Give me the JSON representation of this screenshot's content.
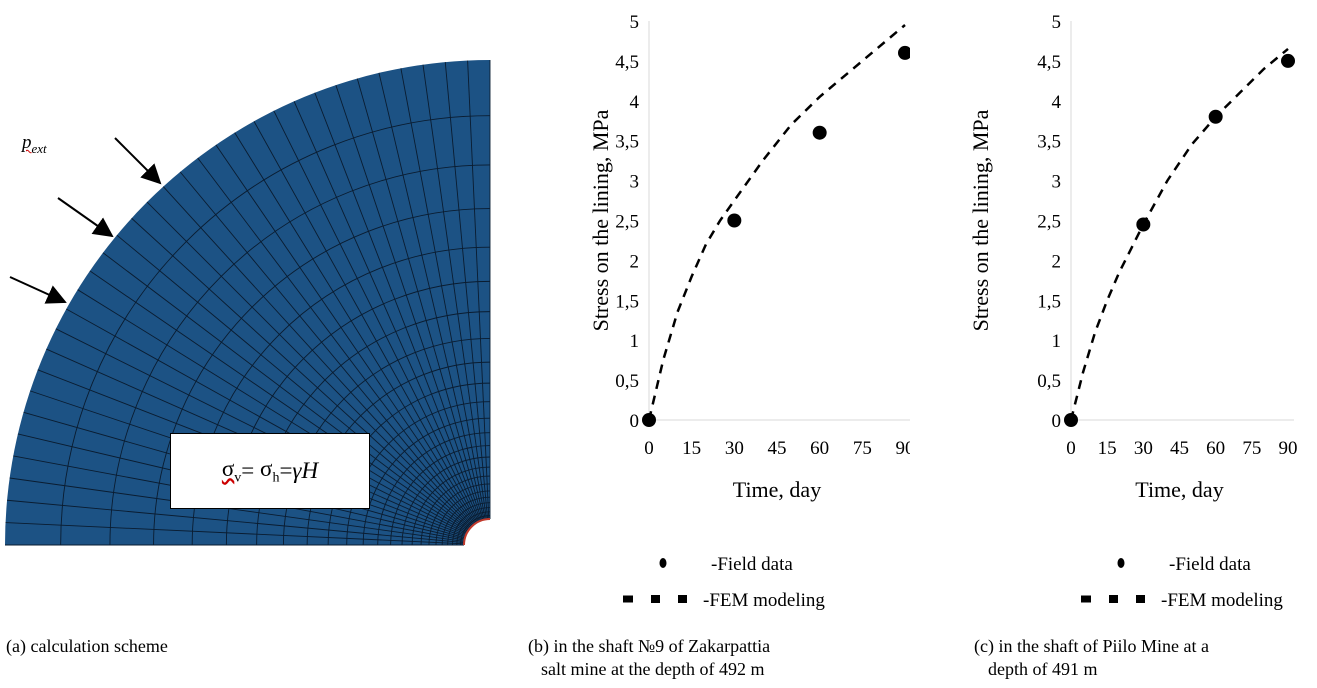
{
  "panel_a": {
    "load_label": "p",
    "load_label_sub": "ext",
    "equation": {
      "sv": "σ",
      "sv_sub": "v",
      "eq1": "= ",
      "sh": "σ",
      "sh_sub": "h",
      "eq2": "=",
      "rhs": "γH"
    },
    "caption": "(a) calculation scheme",
    "colors": {
      "mesh_fill": "#1c5284",
      "mesh_lines": "#0a1c30",
      "hole_edge": "#c0392b"
    }
  },
  "panel_b": {
    "caption_line1": "(b) in the shaft №9 of Zakarpattia",
    "caption_line2": "salt mine at the depth of 492 m"
  },
  "panel_c": {
    "caption_line1": "(c) in the shaft of Piilo Mine at a",
    "caption_line2": "depth of 491 m"
  },
  "chart_data": [
    {
      "type": "scatter",
      "title": "",
      "xlabel": "Time, day",
      "ylabel": "Stress on the lining, MPa",
      "xlim": [
        0,
        90
      ],
      "ylim": [
        0,
        5
      ],
      "xticks": [
        "0",
        "15",
        "30",
        "45",
        "60",
        "75",
        "90"
      ],
      "yticks": [
        "0",
        "0,5",
        "1",
        "1,5",
        "2",
        "2,5",
        "3",
        "3,5",
        "4",
        "4,5",
        "5"
      ],
      "grid": false,
      "legend_position": "bottom",
      "series": [
        {
          "name": "-Field data",
          "kind": "markers",
          "x": [
            0,
            30,
            60,
            90
          ],
          "y": [
            0,
            2.5,
            3.6,
            4.6
          ]
        },
        {
          "name": "-FEM modeling",
          "kind": "dashed-line",
          "x": [
            0,
            5,
            10,
            15,
            20,
            25,
            30,
            40,
            50,
            60,
            70,
            80,
            90
          ],
          "y": [
            0,
            0.75,
            1.35,
            1.8,
            2.2,
            2.5,
            2.75,
            3.25,
            3.7,
            4.05,
            4.35,
            4.65,
            4.95
          ]
        }
      ]
    },
    {
      "type": "scatter",
      "title": "",
      "xlabel": "Time, day",
      "ylabel": "Stress on the lining, MPa",
      "xlim": [
        0,
        90
      ],
      "ylim": [
        0,
        5
      ],
      "xticks": [
        "0",
        "15",
        "30",
        "45",
        "60",
        "75",
        "90"
      ],
      "yticks": [
        "0",
        "0,5",
        "1",
        "1,5",
        "2",
        "2,5",
        "3",
        "3,5",
        "4",
        "4,5",
        "5"
      ],
      "grid": false,
      "legend_position": "bottom",
      "series": [
        {
          "name": "-Field data",
          "kind": "markers",
          "x": [
            0,
            30,
            60,
            90
          ],
          "y": [
            0,
            2.45,
            3.8,
            4.5
          ]
        },
        {
          "name": "-FEM modeling",
          "kind": "dashed-line",
          "x": [
            0,
            5,
            10,
            15,
            20,
            25,
            30,
            40,
            50,
            60,
            70,
            80,
            90
          ],
          "y": [
            0,
            0.6,
            1.1,
            1.5,
            1.85,
            2.15,
            2.45,
            3.0,
            3.45,
            3.8,
            4.1,
            4.4,
            4.65
          ]
        }
      ]
    }
  ]
}
